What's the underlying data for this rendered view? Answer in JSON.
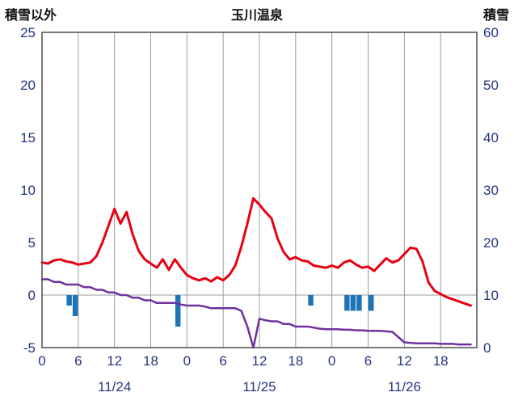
{
  "header": {
    "left_axis_title": "積雪以外",
    "chart_title": "玉川温泉",
    "right_axis_title": "積雪"
  },
  "chart_data": {
    "type": "line",
    "title": "玉川温泉",
    "grid": "on",
    "legend": "none",
    "left_axis": {
      "title": "積雪以外",
      "min": -5,
      "max": 25,
      "ticks": [
        25,
        20,
        15,
        10,
        5,
        0,
        -5
      ]
    },
    "right_axis": {
      "title": "積雪",
      "min": 0,
      "max": 60,
      "ticks": [
        60,
        50,
        40,
        30,
        20,
        10,
        0
      ]
    },
    "x_axis": {
      "hours_total": 72,
      "tick_step_hours": 6,
      "hour_ticks": [
        "0",
        "6",
        "12",
        "18",
        "0",
        "6",
        "12",
        "18",
        "0",
        "6",
        "12",
        "18"
      ],
      "dates": [
        "11/24",
        "11/25",
        "11/26"
      ]
    },
    "style": {
      "grid_color": "#9b9b9b",
      "border_color": "#4d4d4d",
      "tick_color": "#26357f",
      "background": "#ffffff"
    },
    "series": [
      {
        "name": "temperature",
        "type": "line",
        "axis": "left",
        "color": "#e60012",
        "width": 3,
        "values": [
          3.1,
          3.0,
          3.3,
          3.4,
          3.2,
          3.1,
          2.9,
          3.0,
          3.1,
          3.7,
          5.0,
          6.6,
          8.2,
          6.8,
          7.9,
          5.8,
          4.2,
          3.4,
          3.0,
          2.6,
          3.4,
          2.4,
          3.4,
          2.6,
          1.9,
          1.6,
          1.4,
          1.6,
          1.3,
          1.7,
          1.4,
          1.9,
          2.8,
          4.6,
          6.8,
          9.2,
          8.6,
          7.9,
          7.3,
          5.4,
          4.1,
          3.4,
          3.6,
          3.3,
          3.2,
          2.8,
          2.7,
          2.6,
          2.8,
          2.6,
          3.1,
          3.3,
          2.9,
          2.6,
          2.7,
          2.3,
          2.9,
          3.5,
          3.1,
          3.3,
          3.9,
          4.5,
          4.4,
          3.2,
          1.2,
          0.4,
          0.1,
          -0.2,
          -0.4,
          -0.6,
          -0.8,
          -1.0
        ]
      },
      {
        "name": "snow-depth",
        "type": "line",
        "axis": "right",
        "color": "#7030a0",
        "width": 2.5,
        "values": [
          13,
          13,
          12.5,
          12.5,
          12,
          12,
          12,
          11.5,
          11.5,
          11,
          11,
          10.5,
          10.5,
          10,
          10,
          9.5,
          9.5,
          9,
          9,
          8.5,
          8.5,
          8.5,
          8.5,
          8.2,
          8,
          8,
          8,
          7.8,
          7.5,
          7.5,
          7.5,
          7.5,
          7.5,
          7,
          4,
          0,
          5.5,
          5.2,
          5,
          5,
          4.5,
          4.5,
          4,
          4,
          4,
          3.8,
          3.6,
          3.5,
          3.5,
          3.5,
          3.4,
          3.4,
          3.3,
          3.3,
          3.2,
          3.2,
          3.2,
          3.1,
          3.0,
          2.0,
          1.0,
          0.9,
          0.8,
          0.8,
          0.8,
          0.8,
          0.7,
          0.7,
          0.7,
          0.6,
          0.6,
          0.6
        ]
      },
      {
        "name": "precipitation",
        "type": "bar",
        "axis": "left",
        "color": "#1e74b9",
        "values": [
          0,
          0,
          0,
          0,
          1,
          2,
          0,
          0,
          0,
          0,
          0,
          0,
          0,
          0,
          0,
          0,
          0,
          0,
          0,
          0,
          0,
          0,
          3,
          0,
          0,
          0,
          0,
          0,
          0,
          0,
          0,
          0,
          0,
          0,
          0,
          0,
          0,
          0,
          0,
          0,
          0,
          0,
          0,
          0,
          1,
          0,
          0,
          0,
          0,
          0,
          1.5,
          1.5,
          1.5,
          0,
          1.5,
          0,
          0,
          0,
          0,
          0,
          0,
          0,
          0,
          0,
          0,
          0,
          0,
          0,
          0,
          0,
          0,
          0
        ]
      }
    ]
  }
}
